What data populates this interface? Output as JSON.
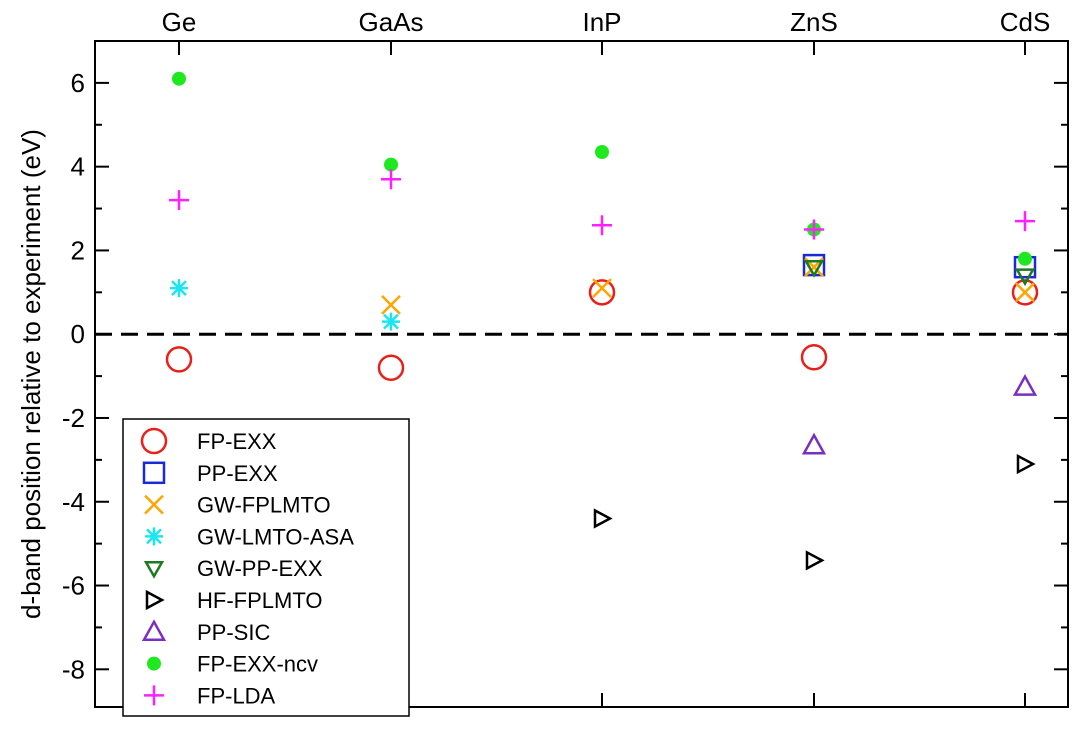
{
  "chart_data": {
    "type": "scatter",
    "title": "",
    "xlabel": "",
    "ylabel": "d-band position relative to experiment (eV)",
    "categories": [
      "Ge",
      "GaAs",
      "InP",
      "ZnS",
      "CdS"
    ],
    "ylim": [
      -8.9,
      7
    ],
    "yticks": [
      -8,
      -6,
      -4,
      -2,
      0,
      2,
      4,
      6
    ],
    "yticklabels": [
      "-8",
      "-6",
      "-4",
      "-2",
      "0",
      "2",
      "4",
      "6"
    ],
    "reference_line": {
      "y": 0,
      "style": "dashed",
      "color": "#000000"
    },
    "legend": {
      "position": "bottom-left"
    },
    "series": [
      {
        "name": "FP-EXX",
        "marker": "circle-open",
        "color": "#e8201a",
        "points": [
          [
            "Ge",
            -0.6
          ],
          [
            "GaAs",
            -0.8
          ],
          [
            "InP",
            1.0
          ],
          [
            "ZnS",
            -0.55
          ],
          [
            "CdS",
            1.0
          ]
        ]
      },
      {
        "name": "PP-EXX",
        "marker": "square-open",
        "color": "#1a2bd6",
        "points": [
          [
            "ZnS",
            1.65
          ],
          [
            "CdS",
            1.6
          ]
        ]
      },
      {
        "name": "GW-FPLMTO",
        "marker": "x",
        "color": "#ffa500",
        "points": [
          [
            "GaAs",
            0.7
          ],
          [
            "InP",
            1.1
          ],
          [
            "ZnS",
            1.6
          ],
          [
            "CdS",
            1.0
          ]
        ]
      },
      {
        "name": "GW-LMTO-ASA",
        "marker": "asterisk",
        "color": "#19e6f0",
        "points": [
          [
            "Ge",
            1.1
          ],
          [
            "GaAs",
            0.3
          ]
        ]
      },
      {
        "name": "GW-PP-EXX",
        "marker": "triangle-down-open",
        "color": "#1e7a1e",
        "points": [
          [
            "ZnS",
            1.6
          ],
          [
            "CdS",
            1.4
          ]
        ]
      },
      {
        "name": "HF-FPLMTO",
        "marker": "triangle-right-open",
        "color": "#000000",
        "points": [
          [
            "InP",
            -4.4
          ],
          [
            "ZnS",
            -5.4
          ],
          [
            "CdS",
            -3.1
          ]
        ]
      },
      {
        "name": "PP-SIC",
        "marker": "triangle-up-open",
        "color": "#7b2fbf",
        "points": [
          [
            "ZnS",
            -2.65
          ],
          [
            "CdS",
            -1.25
          ]
        ]
      },
      {
        "name": "FP-EXX-ncv",
        "marker": "circle-filled",
        "color": "#1ee81e",
        "points": [
          [
            "Ge",
            6.1
          ],
          [
            "GaAs",
            4.05
          ],
          [
            "InP",
            4.35
          ],
          [
            "ZnS",
            2.5
          ],
          [
            "CdS",
            1.8
          ]
        ]
      },
      {
        "name": "FP-LDA",
        "marker": "plus",
        "color": "#ff20ff",
        "points": [
          [
            "Ge",
            3.2
          ],
          [
            "GaAs",
            3.7
          ],
          [
            "InP",
            2.6
          ],
          [
            "ZnS",
            2.5
          ],
          [
            "CdS",
            2.7
          ]
        ]
      }
    ]
  }
}
